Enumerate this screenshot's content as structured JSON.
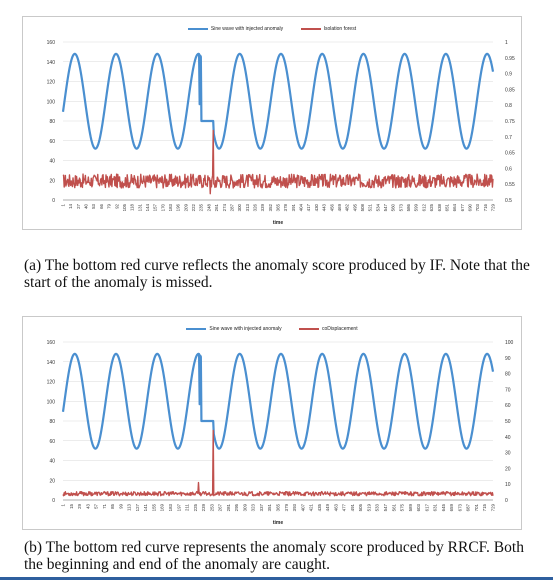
{
  "chart_data": [
    {
      "type": "line",
      "panel": "a",
      "xlabel": "time",
      "x_ticks": [
        "1",
        "14",
        "27",
        "40",
        "53",
        "66",
        "79",
        "92",
        "105",
        "118",
        "131",
        "144",
        "157",
        "170",
        "183",
        "196",
        "209",
        "222",
        "235",
        "248",
        "261",
        "274",
        "287",
        "300",
        "313",
        "326",
        "339",
        "352",
        "365",
        "378",
        "391",
        "404",
        "417",
        "430",
        "443",
        "456",
        "469",
        "482",
        "495",
        "508",
        "521",
        "534",
        "547",
        "560",
        "573",
        "586",
        "599",
        "612",
        "625",
        "638",
        "651",
        "664",
        "677",
        "690",
        "703",
        "716",
        "729"
      ],
      "y_left": {
        "lim": [
          0,
          160
        ],
        "ticks": [
          "0",
          "20",
          "40",
          "60",
          "80",
          "100",
          "120",
          "140",
          "160"
        ]
      },
      "y_right": {
        "lim": [
          0.5,
          1.0
        ],
        "ticks": [
          "0.5",
          "0.55",
          "0.6",
          "0.65",
          "0.7",
          "0.75",
          "0.8",
          "0.85",
          "0.9",
          "0.95",
          "1"
        ]
      },
      "grid": true,
      "legend_position": "top-center",
      "series": [
        {
          "name": "Sine wave with injected anomaly",
          "axis": "left",
          "color": "#4a8fd0",
          "model": {
            "center": 100,
            "amplitude": 48,
            "period": 70,
            "phase_peak_x": 90,
            "x_start": 0,
            "x_end": 730,
            "anomaly": {
              "start": 235,
              "end": 255,
              "level": 80,
              "spike": {
                "x": 232,
                "value": 97
              }
            }
          }
        },
        {
          "name": "Isolation forest",
          "axis": "right",
          "color": "#c0504d",
          "model": {
            "baseline": 0.56,
            "noise": 0.022,
            "x_start": 0,
            "x_end": 730,
            "events": [
              {
                "x": 250,
                "value": 0.52
              },
              {
                "x": 255,
                "value": 0.72
              },
              {
                "x": 258,
                "value": 0.54
              }
            ]
          }
        }
      ]
    },
    {
      "type": "line",
      "panel": "b",
      "xlabel": "time",
      "x_ticks": [
        "1",
        "15",
        "29",
        "43",
        "57",
        "71",
        "85",
        "99",
        "113",
        "127",
        "141",
        "155",
        "169",
        "183",
        "197",
        "211",
        "225",
        "239",
        "253",
        "267",
        "281",
        "295",
        "309",
        "323",
        "337",
        "351",
        "365",
        "379",
        "393",
        "407",
        "421",
        "435",
        "449",
        "463",
        "477",
        "491",
        "505",
        "519",
        "533",
        "547",
        "561",
        "575",
        "589",
        "603",
        "617",
        "631",
        "645",
        "659",
        "673",
        "687",
        "701",
        "715",
        "729"
      ],
      "y_left": {
        "lim": [
          0,
          160
        ],
        "ticks": [
          "0",
          "20",
          "40",
          "60",
          "80",
          "100",
          "120",
          "140",
          "160"
        ]
      },
      "y_right": {
        "lim": [
          0,
          100
        ],
        "ticks": [
          "0",
          "10",
          "20",
          "30",
          "40",
          "50",
          "60",
          "70",
          "80",
          "90",
          "100"
        ]
      },
      "grid": true,
      "legend_position": "top-center",
      "series": [
        {
          "name": "Sine wave with injected anomaly",
          "axis": "left",
          "color": "#4a8fd0",
          "model": {
            "center": 100,
            "amplitude": 48,
            "period": 70,
            "phase_peak_x": 90,
            "x_start": 0,
            "x_end": 730,
            "anomaly": {
              "start": 235,
              "end": 255,
              "level": 80,
              "spike": {
                "x": 232,
                "value": 97
              }
            }
          }
        },
        {
          "name": "coDisplacement",
          "axis": "right",
          "color": "#c0504d",
          "model": {
            "baseline": 4,
            "noise": 1.3,
            "x_start": 0,
            "x_end": 730,
            "events": [
              {
                "x": 230,
                "value": 11
              },
              {
                "x": 255,
                "value": 44
              }
            ]
          }
        }
      ]
    }
  ],
  "captions": {
    "a": "(a)  The bottom red curve reflects the anomaly score produced by IF. Note that the start of the anomaly is missed.",
    "b": "(b)  The bottom red curve represents the anomaly score produced by RRCF. Both the beginning and end of the anomaly are caught."
  }
}
